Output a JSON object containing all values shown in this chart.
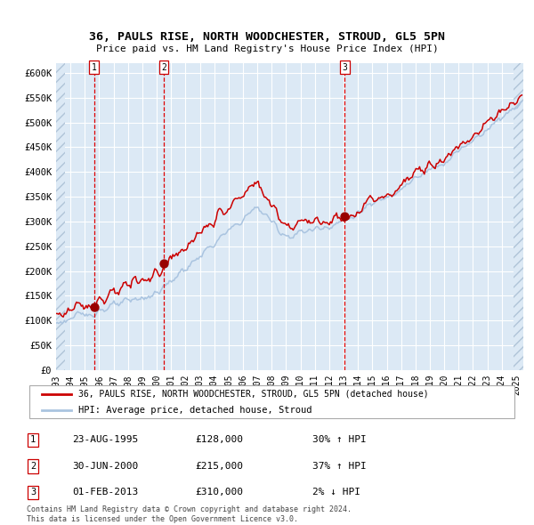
{
  "title_line1": "36, PAULS RISE, NORTH WOODCHESTER, STROUD, GL5 5PN",
  "title_line2": "Price paid vs. HM Land Registry's House Price Index (HPI)",
  "xlim_start": 1993.0,
  "xlim_end": 2025.5,
  "ylim_min": 0,
  "ylim_max": 620000,
  "yticks": [
    0,
    50000,
    100000,
    150000,
    200000,
    250000,
    300000,
    350000,
    400000,
    450000,
    500000,
    550000,
    600000
  ],
  "ytick_labels": [
    "£0",
    "£50K",
    "£100K",
    "£150K",
    "£200K",
    "£250K",
    "£300K",
    "£350K",
    "£400K",
    "£450K",
    "£500K",
    "£550K",
    "£600K"
  ],
  "sale_dates": [
    1995.644,
    2000.496,
    2013.085
  ],
  "sale_prices": [
    128000,
    215000,
    310000
  ],
  "sale_labels": [
    "1",
    "2",
    "3"
  ],
  "hpi_color": "#aac4e0",
  "price_color": "#cc0000",
  "sale_marker_color": "#990000",
  "vline_color": "#dd0000",
  "plot_bg": "#dce9f5",
  "legend_label_red": "36, PAULS RISE, NORTH WOODCHESTER, STROUD, GL5 5PN (detached house)",
  "legend_label_blue": "HPI: Average price, detached house, Stroud",
  "table_rows": [
    {
      "num": "1",
      "date": "23-AUG-1995",
      "price": "£128,000",
      "change": "30% ↑ HPI"
    },
    {
      "num": "2",
      "date": "30-JUN-2000",
      "price": "£215,000",
      "change": "37% ↑ HPI"
    },
    {
      "num": "3",
      "date": "01-FEB-2013",
      "price": "£310,000",
      "change": "2% ↓ HPI"
    }
  ],
  "footnote": "Contains HM Land Registry data © Crown copyright and database right 2024.\nThis data is licensed under the Open Government Licence v3.0.",
  "xticks": [
    1993,
    1994,
    1995,
    1996,
    1997,
    1998,
    1999,
    2000,
    2001,
    2002,
    2003,
    2004,
    2005,
    2006,
    2007,
    2008,
    2009,
    2010,
    2011,
    2012,
    2013,
    2014,
    2015,
    2016,
    2017,
    2018,
    2019,
    2020,
    2021,
    2022,
    2023,
    2024,
    2025
  ]
}
